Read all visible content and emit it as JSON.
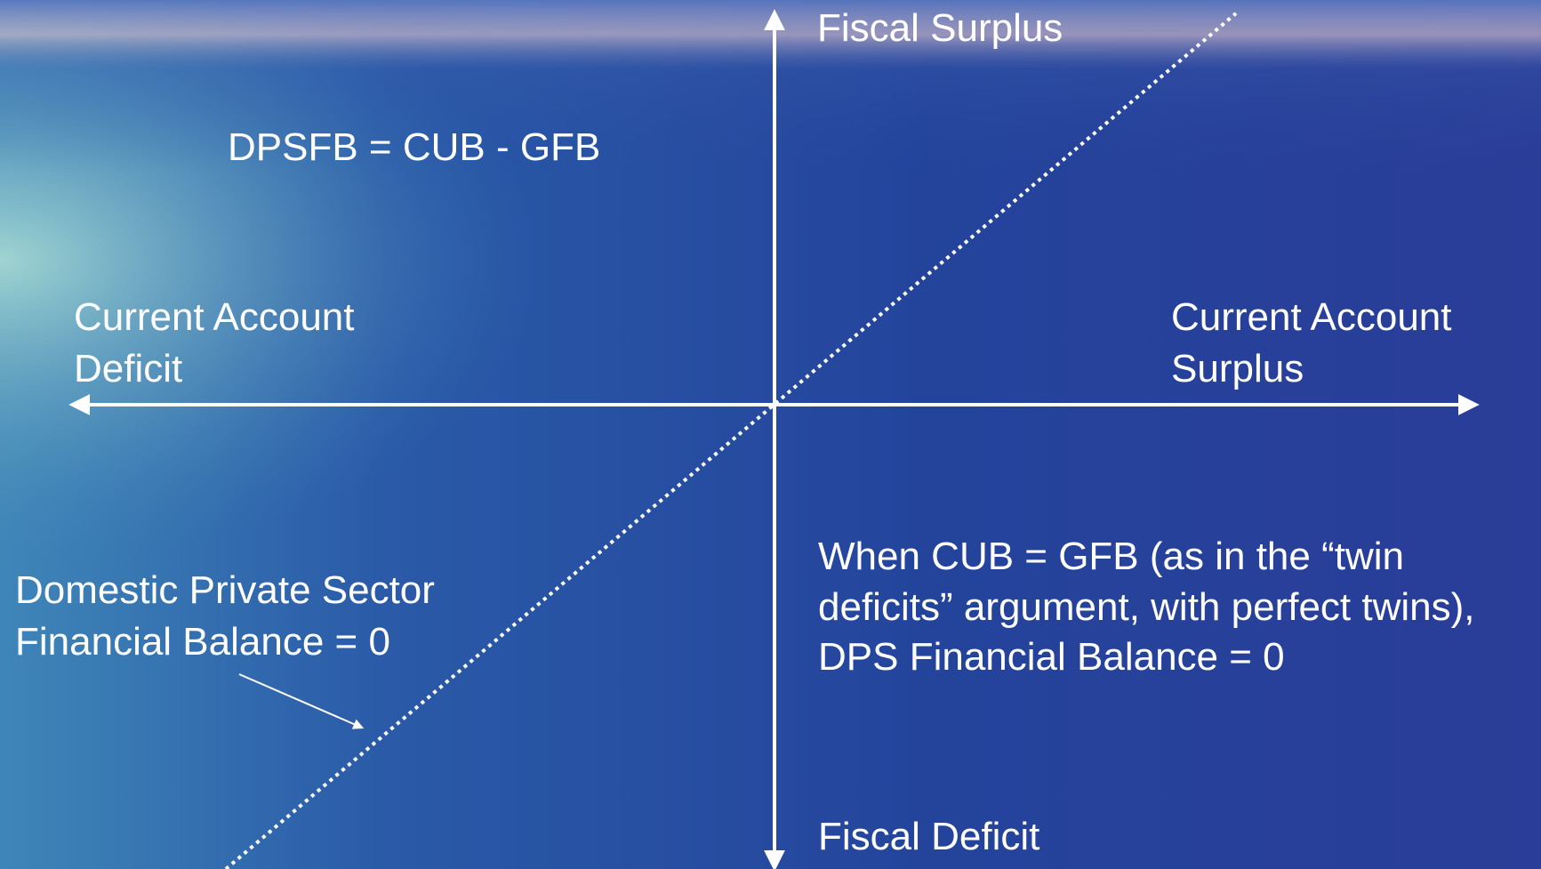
{
  "axes": {
    "top": "Fiscal Surplus",
    "bottom": "Fiscal Deficit",
    "left": [
      "Current Account",
      "Deficit"
    ],
    "right": [
      "Current Account",
      "Surplus"
    ]
  },
  "equation": "DPSFB = CUB - GFB",
  "line_label": [
    "Domestic Private Sector",
    "Financial Balance = 0"
  ],
  "note": [
    "When CUB = GFB (as in the “twin",
    "deficits” argument, with perfect twins),",
    "DPS Financial Balance = 0"
  ]
}
